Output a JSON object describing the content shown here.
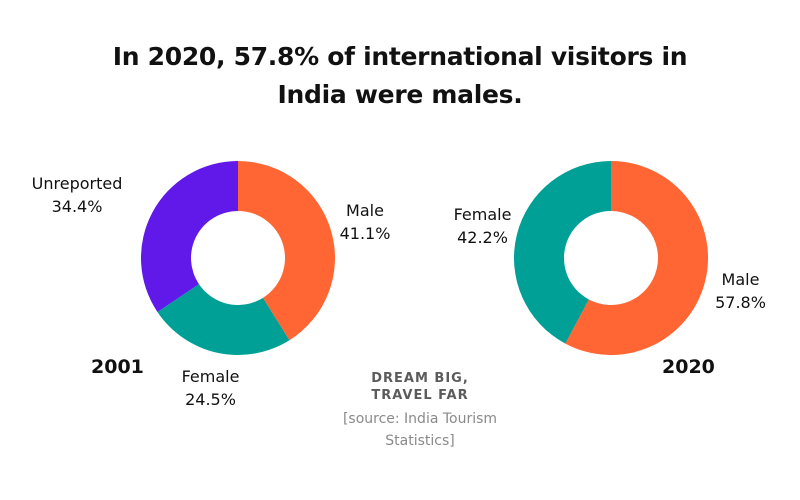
{
  "title": {
    "line1": "In 2020, 57.8% of international visitors in",
    "line2": "India were males."
  },
  "chart_data": [
    {
      "type": "pie",
      "year": "2001",
      "slices": [
        {
          "label": "Male",
          "value": 41.1,
          "value_label": "41.1%",
          "color": "#FF6633"
        },
        {
          "label": "Female",
          "value": 24.5,
          "value_label": "24.5%",
          "color": "#00A096"
        },
        {
          "label": "Unreported",
          "value": 34.4,
          "value_label": "34.4%",
          "color": "#6019E8"
        }
      ]
    },
    {
      "type": "pie",
      "year": "2020",
      "slices": [
        {
          "label": "Male",
          "value": 57.8,
          "value_label": "57.8%",
          "color": "#FF6633"
        },
        {
          "label": "Female",
          "value": 42.2,
          "value_label": "42.2%",
          "color": "#00A096"
        }
      ]
    }
  ],
  "branding": {
    "line1": "DREAM BIG,",
    "line2": "TRAVEL FAR"
  },
  "source": "[source: India Tourism Statistics]"
}
